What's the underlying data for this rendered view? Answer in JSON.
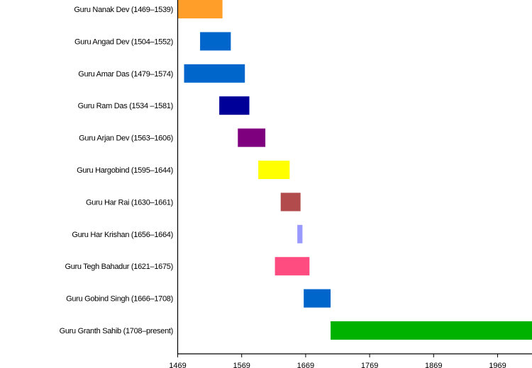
{
  "chart_data": {
    "type": "bar",
    "orientation": "horizontal-timeline",
    "title": "",
    "xlabel": "",
    "ylabel": "",
    "xlim": [
      1469,
      2024
    ],
    "x_ticks": [
      "1469",
      "1569",
      "1669",
      "1769",
      "1869",
      "1969"
    ],
    "grid": false,
    "legend": "none",
    "series": [
      {
        "label": "Guru Nanak Dev (1469–1539)",
        "start": 1469,
        "end": 1539,
        "color": "#FF9F2A"
      },
      {
        "label": "Guru Angad Dev (1504–1552)",
        "start": 1504,
        "end": 1552,
        "color": "#0066CC"
      },
      {
        "label": "Guru Amar Das (1479–1574)",
        "start": 1479,
        "end": 1574,
        "color": "#0066CC"
      },
      {
        "label": "Guru Ram Das (1534 –1581)",
        "start": 1534,
        "end": 1581,
        "color": "#000099"
      },
      {
        "label": "Guru Arjan Dev (1563–1606)",
        "start": 1563,
        "end": 1606,
        "color": "#7F007F"
      },
      {
        "label": "Guru Hargobind (1595–1644)",
        "start": 1595,
        "end": 1644,
        "color": "#FFFF00"
      },
      {
        "label": "Guru Har Rai (1630–1661)",
        "start": 1630,
        "end": 1661,
        "color": "#B24C4C"
      },
      {
        "label": "Guru Har Krishan (1656–1664)",
        "start": 1656,
        "end": 1664,
        "color": "#9999FF"
      },
      {
        "label": "Guru Tegh Bahadur (1621–1675)",
        "start": 1621,
        "end": 1675,
        "color": "#FF4C80"
      },
      {
        "label": "Guru Gobind Singh (1666–1708)",
        "start": 1666,
        "end": 1708,
        "color": "#0066CC"
      },
      {
        "label": "Guru Granth Sahib (1708–present)",
        "start": 1708,
        "end": "present",
        "color": "#00B200"
      }
    ]
  }
}
